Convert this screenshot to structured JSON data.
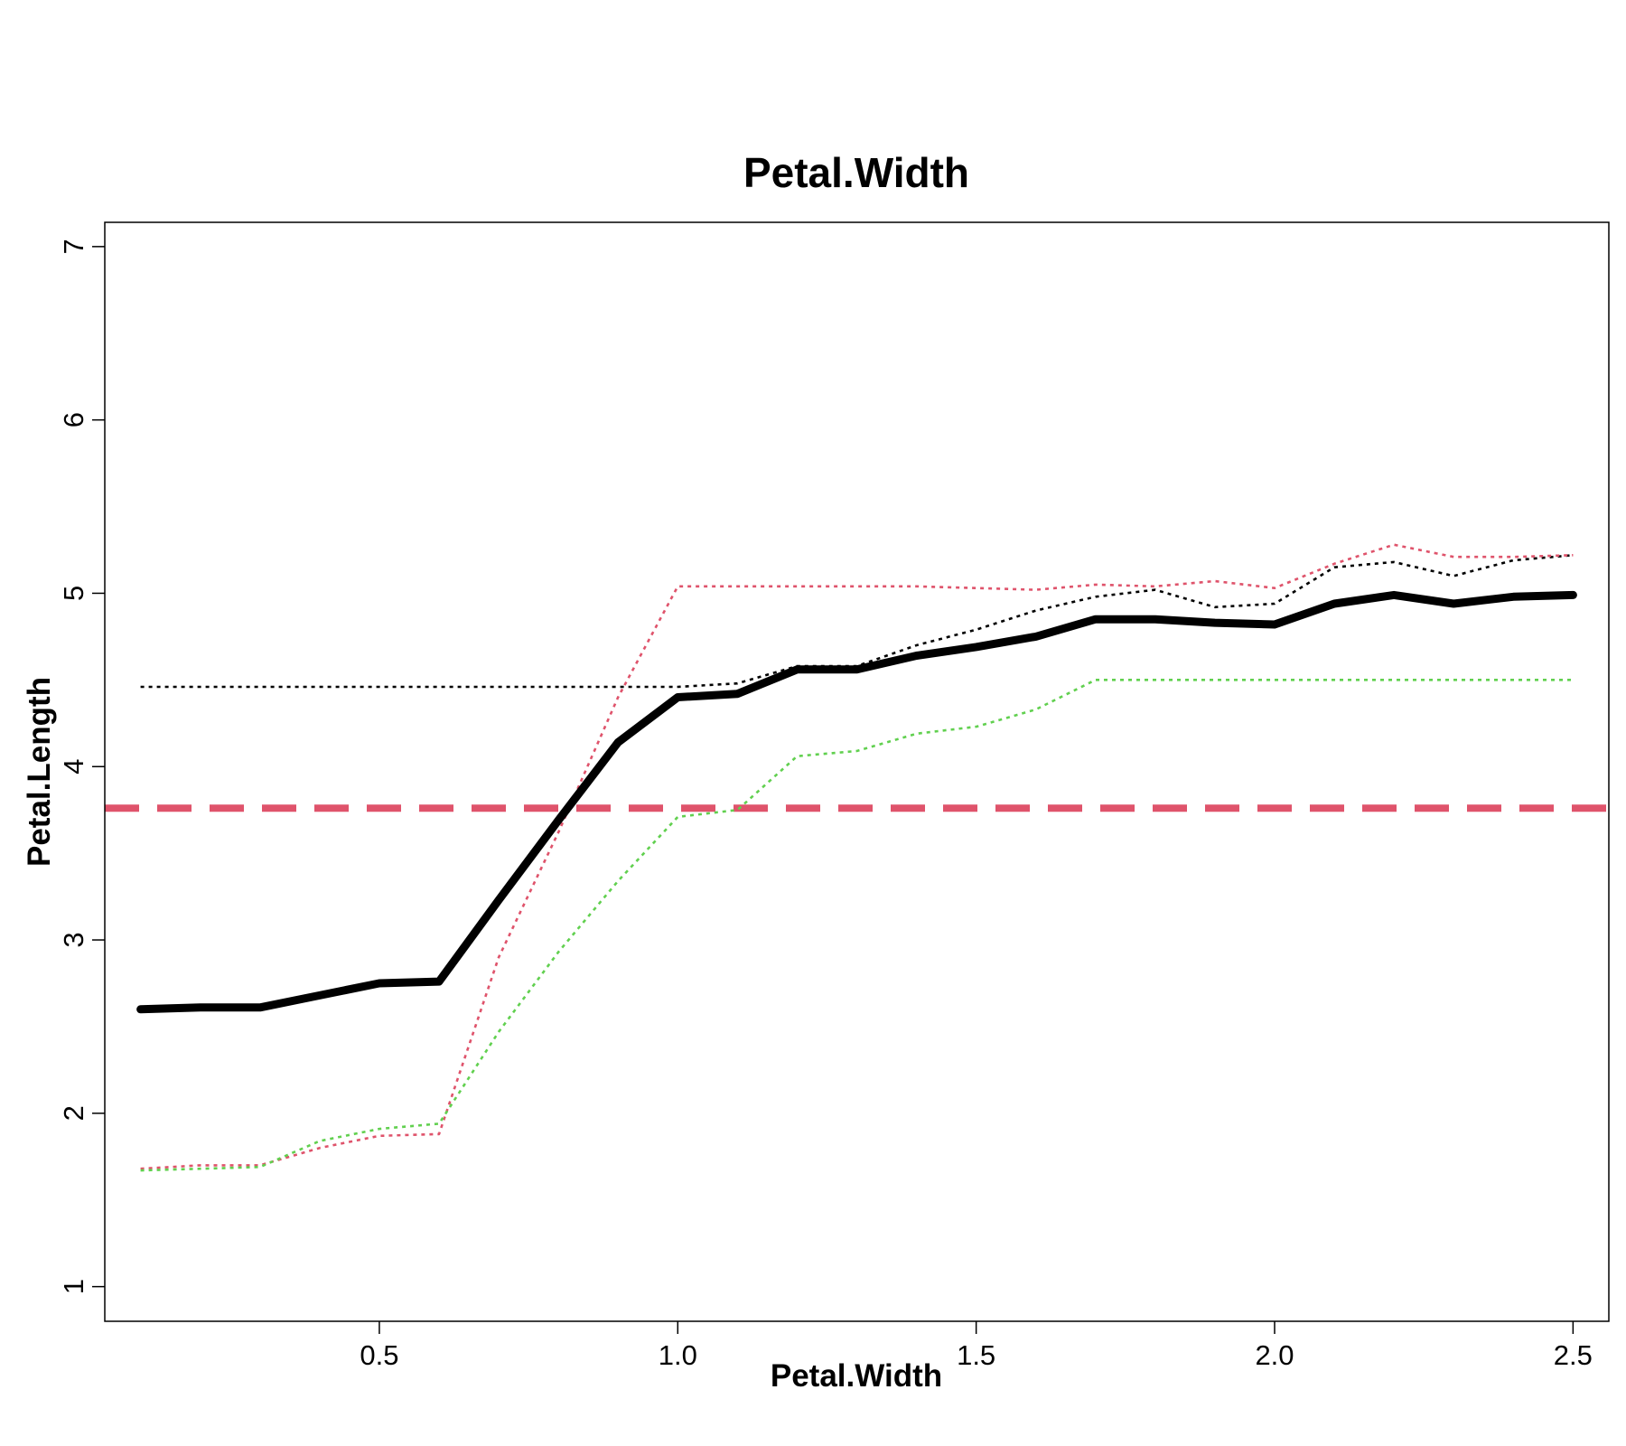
{
  "chart_data": {
    "type": "line",
    "title": "Petal.Width",
    "xlabel": "Petal.Width",
    "ylabel": "Petal.Length",
    "xlim": [
      0.04,
      2.56
    ],
    "ylim": [
      0.8,
      7.14
    ],
    "x_ticks": [
      0.5,
      1.0,
      1.5,
      2.0,
      2.5
    ],
    "x_tick_labels": [
      "0.5",
      "1.0",
      "1.5",
      "2.0",
      "2.5"
    ],
    "y_ticks": [
      1,
      2,
      3,
      4,
      5,
      6,
      7
    ],
    "y_tick_labels": [
      "1",
      "2",
      "3",
      "4",
      "5",
      "6",
      "7"
    ],
    "grid": false,
    "legend": "none",
    "x": [
      0.1,
      0.2,
      0.3,
      0.4,
      0.5,
      0.6,
      0.7,
      0.8,
      0.9,
      1.0,
      1.1,
      1.2,
      1.3,
      1.4,
      1.5,
      1.6,
      1.7,
      1.8,
      1.9,
      2.0,
      2.1,
      2.2,
      2.3,
      2.4,
      2.5
    ],
    "series": [
      {
        "style": "solid-thick",
        "color": "#000000",
        "values": [
          2.6,
          2.61,
          2.61,
          2.68,
          2.75,
          2.76,
          3.23,
          3.69,
          4.14,
          4.4,
          4.42,
          4.56,
          4.56,
          4.64,
          4.69,
          4.75,
          4.85,
          4.85,
          4.83,
          4.82,
          4.94,
          4.99,
          4.94,
          4.98,
          4.99
        ]
      },
      {
        "style": "dotted",
        "color": "#000000",
        "values": [
          4.46,
          4.46,
          4.46,
          4.46,
          4.46,
          4.46,
          4.46,
          4.46,
          4.46,
          4.46,
          4.48,
          4.58,
          4.58,
          4.7,
          4.79,
          4.9,
          4.98,
          5.02,
          4.92,
          4.94,
          5.15,
          5.18,
          5.1,
          5.19,
          5.22
        ]
      },
      {
        "style": "dotted",
        "color": "#DF536B",
        "values": [
          1.68,
          1.7,
          1.7,
          1.8,
          1.87,
          1.88,
          2.9,
          3.62,
          4.4,
          5.04,
          5.04,
          5.04,
          5.04,
          5.04,
          5.03,
          5.02,
          5.05,
          5.04,
          5.07,
          5.03,
          5.17,
          5.28,
          5.21,
          5.21,
          5.22
        ]
      },
      {
        "style": "dotted",
        "color": "#61D04F",
        "values": [
          1.67,
          1.68,
          1.69,
          1.84,
          1.91,
          1.94,
          2.47,
          2.93,
          3.34,
          3.71,
          3.75,
          4.06,
          4.09,
          4.19,
          4.23,
          4.33,
          4.5,
          4.5,
          4.5,
          4.5,
          4.5,
          4.5,
          4.5,
          4.5,
          4.5
        ]
      }
    ],
    "reference_lines": [
      {
        "type": "horizontal",
        "y": 3.76,
        "style": "dashed",
        "color": "#DF536B"
      }
    ]
  }
}
